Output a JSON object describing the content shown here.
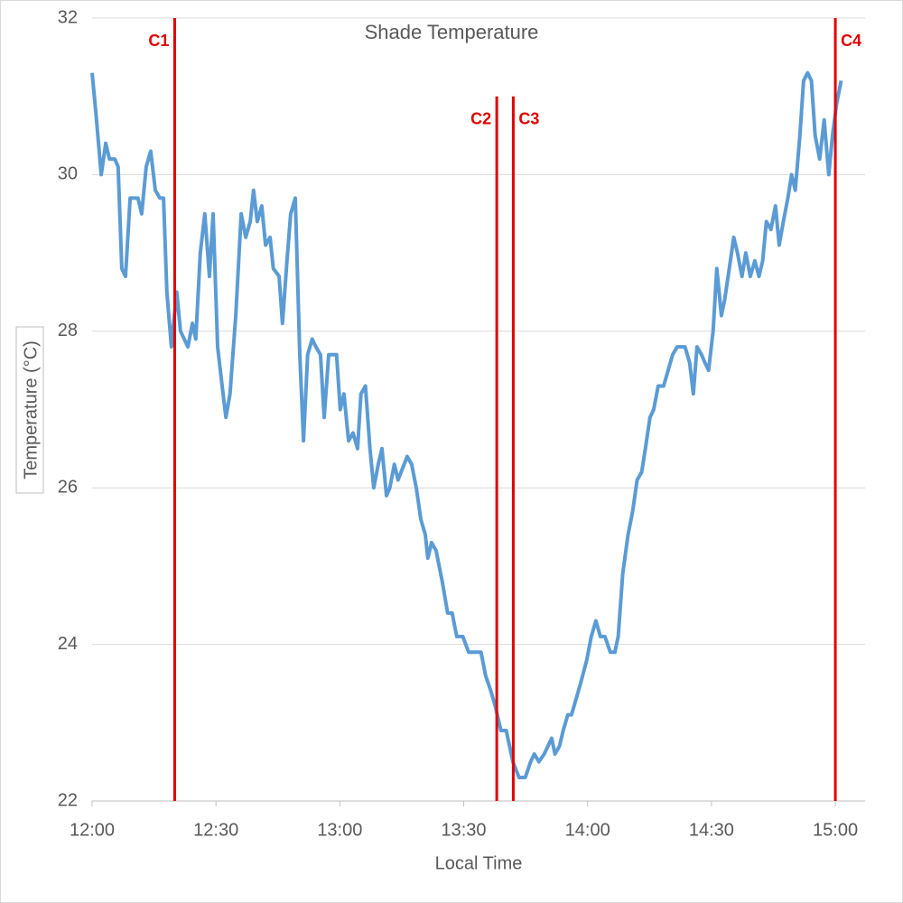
{
  "chart_data": {
    "type": "line",
    "title": "Shade Temperature",
    "xlabel": "Local Time",
    "ylabel": "Temperature (°C)",
    "color": "#5b9bd5",
    "grid": true,
    "x": [
      720.0,
      720.9,
      722.2,
      723.3,
      724.2,
      725.5,
      726.3,
      727.2,
      728.1,
      729.2,
      730.5,
      731.1,
      732.0,
      733.1,
      734.2,
      735.3,
      736.4,
      737.3,
      738.1,
      739.2,
      740.5,
      741.4,
      743.2,
      744.3,
      745.1,
      746.2,
      747.3,
      748.4,
      749.3,
      750.4,
      751.5,
      752.4,
      753.4,
      754.8,
      756.1,
      757.2,
      758.3,
      759.1,
      760.0,
      761.1,
      762.0,
      763.1,
      763.9,
      765.3,
      766.1,
      767.2,
      768.1,
      769.2,
      770.3,
      771.2,
      772.2,
      773.3,
      774.2,
      775.3,
      776.2,
      777.3,
      779.2,
      780.1,
      781.0,
      782.1,
      783.2,
      784.3,
      785.1,
      786.2,
      787.3,
      788.2,
      789.3,
      790.2,
      791.3,
      792.1,
      793.2,
      794.1,
      796.3,
      797.4,
      798.5,
      799.6,
      800.7,
      801.3,
      802.2,
      803.3,
      804.8,
      806.1,
      807.2,
      808.3,
      809.8,
      811.2,
      814.2,
      815.3,
      816.6,
      817.7,
      819.0,
      820.3,
      821.9,
      823.4,
      824.9,
      826.2,
      827.1,
      828.2,
      829.5,
      831.3,
      832.1,
      833.2,
      834.1,
      835.2,
      836.1,
      837.2,
      838.3,
      839.8,
      840.9,
      842.0,
      843.1,
      844.2,
      845.5,
      846.6,
      847.4,
      848.5,
      849.8,
      850.9,
      852.0,
      853.1,
      854.0,
      855.1,
      856.0,
      857.1,
      858.4,
      859.5,
      860.6,
      861.7,
      863.6,
      864.7,
      865.6,
      866.5,
      867.6,
      868.4,
      869.3,
      870.4,
      871.3,
      872.4,
      873.2,
      874.3,
      875.4,
      876.3,
      877.4,
      878.3,
      879.4,
      880.5,
      881.5,
      882.4,
      883.3,
      884.4,
      885.5,
      886.4,
      887.4,
      888.5,
      889.4,
      890.3,
      891.4,
      892.3,
      893.3,
      894.2,
      895.1,
      896.2,
      897.3,
      898.4,
      899.3,
      900.3,
      901.4
    ],
    "values": [
      31.3,
      30.8,
      30.0,
      30.4,
      30.2,
      30.2,
      30.1,
      28.8,
      28.7,
      29.7,
      29.7,
      29.7,
      29.5,
      30.1,
      30.3,
      29.8,
      29.7,
      29.7,
      28.5,
      27.8,
      28.5,
      28.0,
      27.8,
      28.1,
      27.9,
      29.0,
      29.5,
      28.7,
      29.5,
      27.8,
      27.3,
      26.9,
      27.2,
      28.2,
      29.5,
      29.2,
      29.4,
      29.8,
      29.4,
      29.6,
      29.1,
      29.2,
      28.8,
      28.7,
      28.1,
      28.9,
      29.5,
      29.7,
      27.7,
      26.6,
      27.7,
      27.9,
      27.8,
      27.7,
      26.9,
      27.7,
      27.7,
      27.0,
      27.2,
      26.6,
      26.7,
      26.5,
      27.2,
      27.3,
      26.5,
      26.0,
      26.3,
      26.5,
      25.9,
      26.0,
      26.3,
      26.1,
      26.4,
      26.3,
      26.0,
      25.6,
      25.4,
      25.1,
      25.3,
      25.2,
      24.8,
      24.4,
      24.4,
      24.1,
      24.1,
      23.9,
      23.9,
      23.6,
      23.4,
      23.2,
      22.9,
      22.9,
      22.5,
      22.3,
      22.3,
      22.5,
      22.6,
      22.5,
      22.6,
      22.8,
      22.6,
      22.7,
      22.9,
      23.1,
      23.1,
      23.3,
      23.5,
      23.8,
      24.1,
      24.3,
      24.1,
      24.1,
      23.9,
      23.9,
      24.1,
      24.9,
      25.4,
      25.7,
      26.1,
      26.2,
      26.5,
      26.9,
      27.0,
      27.3,
      27.3,
      27.5,
      27.7,
      27.8,
      27.8,
      27.6,
      27.2,
      27.8,
      27.7,
      27.6,
      27.5,
      28.0,
      28.8,
      28.2,
      28.4,
      28.8,
      29.2,
      29.0,
      28.7,
      29.0,
      28.7,
      28.9,
      28.7,
      28.9,
      29.4,
      29.3,
      29.6,
      29.1,
      29.4,
      29.7,
      30.0,
      29.8,
      30.5,
      31.2,
      31.3,
      31.2,
      30.5,
      30.2,
      30.7,
      30.0,
      30.5,
      30.9,
      31.2
    ],
    "xlim": [
      720,
      907.2
    ],
    "xticks": [
      {
        "value": 720,
        "label": "12:00"
      },
      {
        "value": 750,
        "label": "12:30"
      },
      {
        "value": 780,
        "label": "13:00"
      },
      {
        "value": 810,
        "label": "13:30"
      },
      {
        "value": 840,
        "label": "14:00"
      },
      {
        "value": 870,
        "label": "14:30"
      },
      {
        "value": 900,
        "label": "15:00"
      }
    ],
    "ylim": [
      22,
      32
    ],
    "yticks": [
      22,
      24,
      26,
      28,
      30,
      32
    ],
    "markers": [
      {
        "label": "C1",
        "x": 740,
        "ymax": 32,
        "label_side": "left",
        "color": "#e00000"
      },
      {
        "label": "C2",
        "x": 818,
        "ymax": 31,
        "label_side": "left",
        "color": "#e00000"
      },
      {
        "label": "C3",
        "x": 822,
        "ymax": 31,
        "label_side": "right",
        "color": "#e00000"
      },
      {
        "label": "C4",
        "x": 900,
        "ymax": 32,
        "label_side": "right",
        "color": "#e00000"
      }
    ]
  }
}
